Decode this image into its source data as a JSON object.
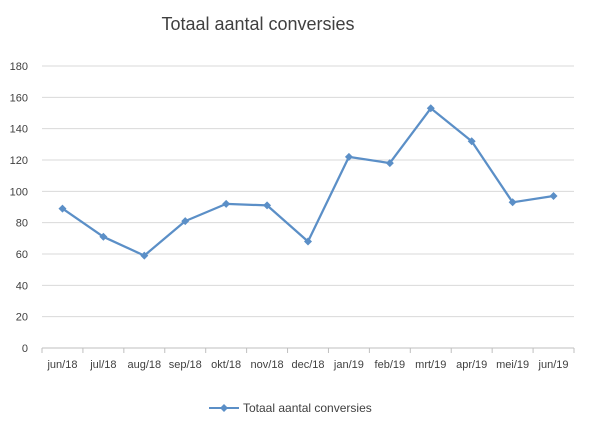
{
  "chart_data": {
    "type": "line",
    "title": "Totaal aantal conversies",
    "categories": [
      "jun/18",
      "jul/18",
      "aug/18",
      "sep/18",
      "okt/18",
      "nov/18",
      "dec/18",
      "jan/19",
      "feb/19",
      "mrt/19",
      "apr/19",
      "mei/19",
      "jun/19"
    ],
    "series": [
      {
        "name": "Totaal aantal conversies",
        "values": [
          89,
          71,
          59,
          81,
          92,
          91,
          68,
          122,
          118,
          153,
          132,
          93,
          97
        ],
        "color": "#5b8fc7"
      }
    ],
    "ylim": [
      0,
      180
    ],
    "yticks": [
      0,
      20,
      40,
      60,
      80,
      100,
      120,
      140,
      160,
      180
    ],
    "grid": true,
    "legend": "bottom",
    "xlabel": "",
    "ylabel": ""
  }
}
